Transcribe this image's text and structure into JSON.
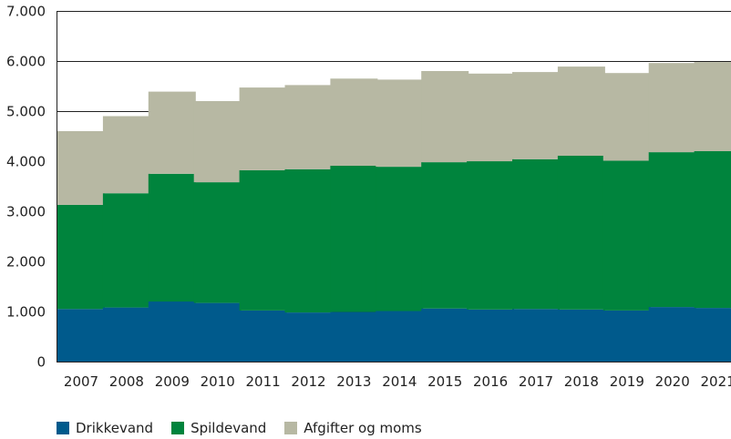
{
  "chart_data": {
    "type": "bar",
    "stacked": true,
    "categories": [
      "2007",
      "2008",
      "2009",
      "2010",
      "2011",
      "2012",
      "2013",
      "2014",
      "2015",
      "2016",
      "2017",
      "2018",
      "2019",
      "2020",
      "2021"
    ],
    "series": [
      {
        "name": "Drikkevand",
        "color": "#005a8c",
        "values": [
          1050,
          1080,
          1200,
          1170,
          1020,
          980,
          990,
          1010,
          1060,
          1040,
          1050,
          1040,
          1020,
          1090,
          1070
        ]
      },
      {
        "name": "Spildevand",
        "color": "#00843d",
        "values": [
          2080,
          2280,
          2550,
          2410,
          2800,
          2860,
          2920,
          2880,
          2920,
          2960,
          2990,
          3070,
          2990,
          3090,
          3130
        ]
      },
      {
        "name": "Afgifter og moms",
        "color": "#b7b8a3",
        "values": [
          1470,
          1540,
          1640,
          1620,
          1650,
          1680,
          1740,
          1740,
          1820,
          1750,
          1740,
          1780,
          1750,
          1780,
          1780
        ]
      }
    ],
    "ylim": [
      0,
      7000
    ],
    "yticks": [
      0,
      1000,
      2000,
      3000,
      4000,
      5000,
      6000,
      7000
    ],
    "ytick_labels": [
      "0",
      "1.000",
      "2.000",
      "3.000",
      "4.000",
      "5.000",
      "6.000",
      "7.000"
    ],
    "grid": true,
    "legend_position": "bottom-left",
    "title": "",
    "xlabel": "",
    "ylabel": ""
  }
}
